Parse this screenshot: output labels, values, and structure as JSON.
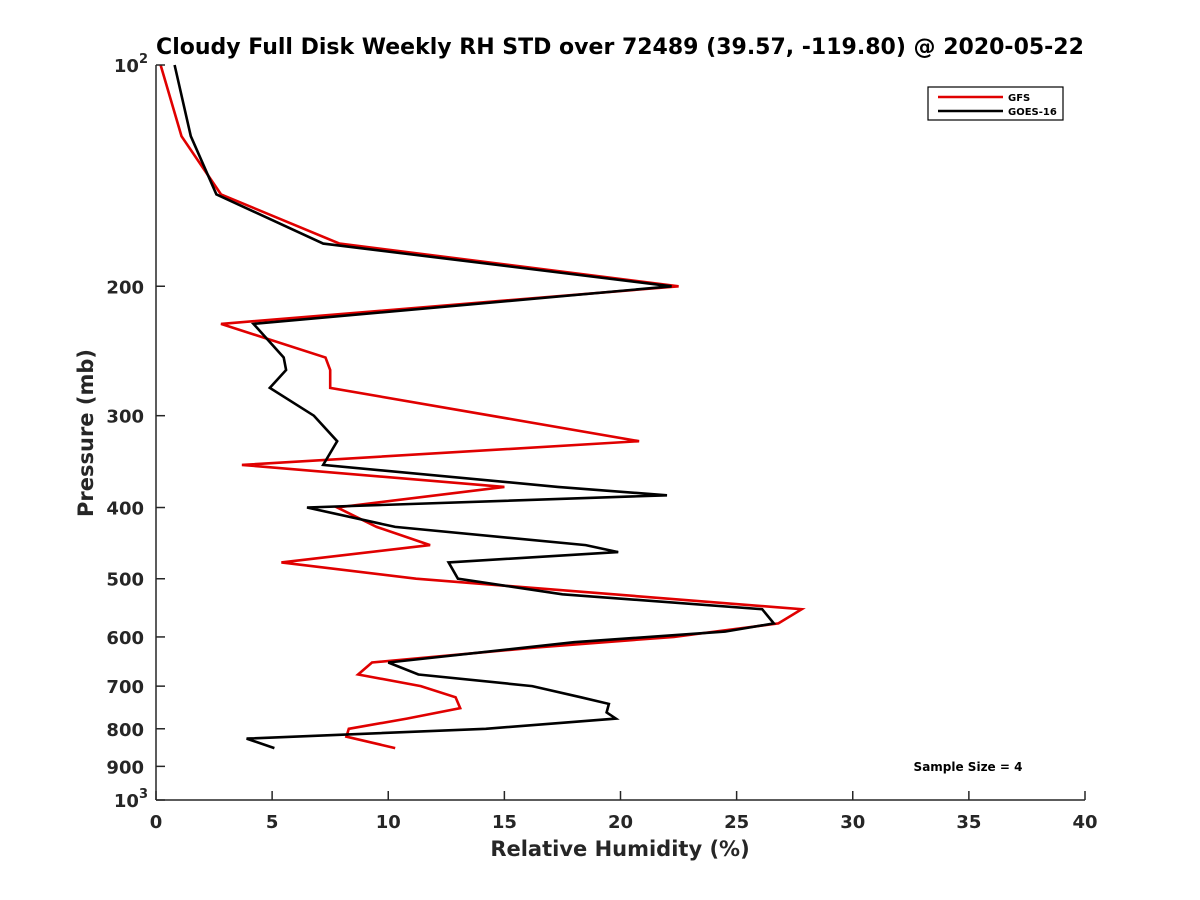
{
  "chart_data": {
    "type": "line",
    "title": "Cloudy Full Disk Weekly RH STD over 72489 (39.57, -119.80) @ 2020-05-22",
    "xlabel": "Relative Humidity (%)",
    "ylabel": "Pressure (mb)",
    "xlim": [
      0,
      40
    ],
    "ylim": [
      100,
      1000
    ],
    "y_scale": "log",
    "y_reversed": true,
    "grid": false,
    "legend_position": "top-right",
    "x_ticks": [
      0,
      5,
      10,
      15,
      20,
      25,
      30,
      35,
      40
    ],
    "y_ticks": [
      {
        "value": 100,
        "label": "10",
        "exp": "2"
      },
      {
        "value": 200,
        "label": "200",
        "exp": ""
      },
      {
        "value": 300,
        "label": "300",
        "exp": ""
      },
      {
        "value": 400,
        "label": "400",
        "exp": ""
      },
      {
        "value": 500,
        "label": "500",
        "exp": ""
      },
      {
        "value": 600,
        "label": "600",
        "exp": ""
      },
      {
        "value": 700,
        "label": "700",
        "exp": ""
      },
      {
        "value": 800,
        "label": "800",
        "exp": ""
      },
      {
        "value": 900,
        "label": "900",
        "exp": ""
      },
      {
        "value": 1000,
        "label": "10",
        "exp": "3"
      }
    ],
    "annotation": "Sample Size = 4",
    "series": [
      {
        "name": "GFS",
        "color": "#e00000",
        "points": [
          [
            0.2,
            100
          ],
          [
            1.1,
            125
          ],
          [
            2.8,
            150
          ],
          [
            7.9,
            175
          ],
          [
            22.5,
            200
          ],
          [
            2.8,
            225
          ],
          [
            7.3,
            250
          ],
          [
            7.5,
            260
          ],
          [
            7.5,
            275
          ],
          [
            20.8,
            325
          ],
          [
            3.7,
            350
          ],
          [
            15.0,
            375
          ],
          [
            7.8,
            400
          ],
          [
            9.5,
            425
          ],
          [
            11.8,
            450
          ],
          [
            5.4,
            475
          ],
          [
            11.2,
            500
          ],
          [
            27.8,
            550
          ],
          [
            26.8,
            575
          ],
          [
            22.3,
            600
          ],
          [
            16.4,
            620
          ],
          [
            9.3,
            650
          ],
          [
            8.7,
            675
          ],
          [
            11.4,
            700
          ],
          [
            12.9,
            725
          ],
          [
            13.1,
            750
          ],
          [
            10.8,
            775
          ],
          [
            8.3,
            800
          ],
          [
            8.2,
            820
          ],
          [
            10.3,
            850
          ]
        ]
      },
      {
        "name": "GOES-16",
        "color": "#000000",
        "points": [
          [
            0.8,
            100
          ],
          [
            1.5,
            125
          ],
          [
            2.6,
            150
          ],
          [
            7.2,
            175
          ],
          [
            22.2,
            200
          ],
          [
            4.2,
            225
          ],
          [
            5.5,
            250
          ],
          [
            5.6,
            260
          ],
          [
            4.9,
            275
          ],
          [
            6.8,
            300
          ],
          [
            7.8,
            325
          ],
          [
            7.2,
            350
          ],
          [
            17.3,
            375
          ],
          [
            22.0,
            385
          ],
          [
            6.5,
            400
          ],
          [
            10.3,
            425
          ],
          [
            18.5,
            450
          ],
          [
            19.9,
            460
          ],
          [
            12.6,
            475
          ],
          [
            13.0,
            500
          ],
          [
            17.5,
            525
          ],
          [
            26.1,
            550
          ],
          [
            26.6,
            575
          ],
          [
            24.5,
            590
          ],
          [
            18.0,
            610
          ],
          [
            10.0,
            650
          ],
          [
            11.3,
            675
          ],
          [
            16.2,
            700
          ],
          [
            18.3,
            725
          ],
          [
            19.5,
            740
          ],
          [
            19.4,
            760
          ],
          [
            19.8,
            775
          ],
          [
            14.2,
            800
          ],
          [
            3.9,
            825
          ],
          [
            5.1,
            850
          ]
        ]
      }
    ]
  }
}
